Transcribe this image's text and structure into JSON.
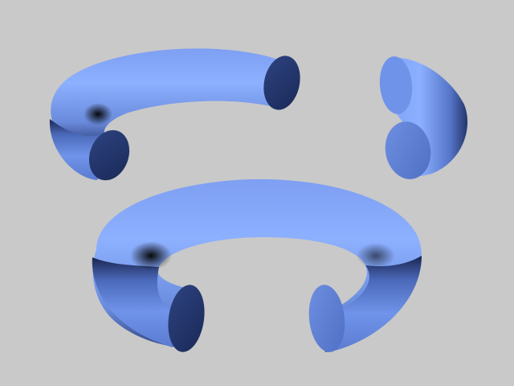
{
  "scene": {
    "background_color": "#c9c9c9",
    "tube_color": "#6e8fe0",
    "tube_highlight_color": "#8db0ff",
    "tube_shadow_color": "#0d1530",
    "cap_color": "#5e80d4",
    "cap_dark_color": "#1f2f5c",
    "objects": [
      {
        "name": "upper-left-open-torus",
        "description_icon": "open-torus-icon"
      },
      {
        "name": "upper-right-torus-fragment",
        "description_icon": "torus-fragment-icon"
      },
      {
        "name": "bottom-open-torus",
        "description_icon": "open-torus-icon"
      }
    ]
  }
}
